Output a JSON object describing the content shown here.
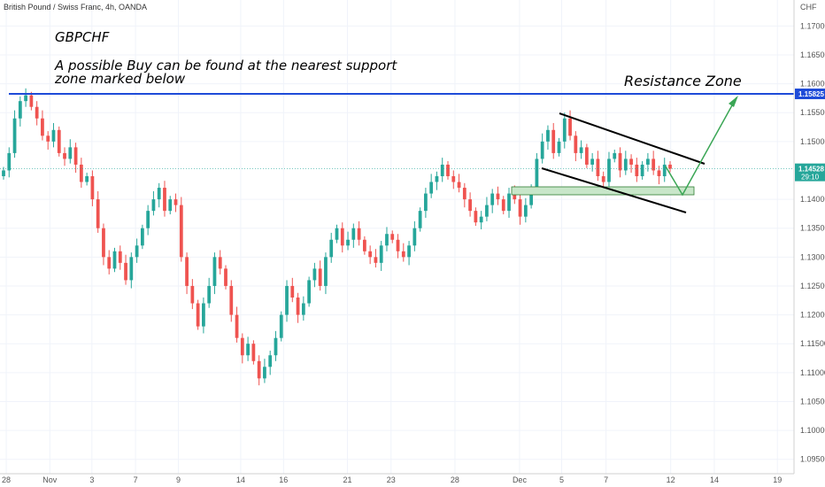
{
  "chart_data": {
    "type": "candlestick",
    "title": "British Pound / Swiss Franc, 4h, OANDA",
    "currency": "CHF",
    "symbol": "GBPCHF",
    "note_line1": "A possible Buy can be found at the nearest support",
    "note_line2": "zone marked below",
    "resistance_label": "Resistance Zone",
    "ylim": [
      1.0925,
      1.1745
    ],
    "y_ticks": [
      "1.17000",
      "1.16500",
      "1.16000",
      "1.15500",
      "1.15000",
      "1.14000",
      "1.13500",
      "1.13000",
      "1.12500",
      "1.12000",
      "1.11500",
      "1.11000",
      "1.10500",
      "1.10000",
      "1.09500"
    ],
    "x_ticks": [
      {
        "label": "28",
        "pos": 0.008
      },
      {
        "label": "Nov",
        "pos": 0.064
      },
      {
        "label": "3",
        "pos": 0.118
      },
      {
        "label": "7",
        "pos": 0.174
      },
      {
        "label": "9",
        "pos": 0.229
      },
      {
        "label": "14",
        "pos": 0.309
      },
      {
        "label": "16",
        "pos": 0.364
      },
      {
        "label": "21",
        "pos": 0.446
      },
      {
        "label": "23",
        "pos": 0.502
      },
      {
        "label": "28",
        "pos": 0.584
      },
      {
        "label": "Dec",
        "pos": 0.667
      },
      {
        "label": "5",
        "pos": 0.721
      },
      {
        "label": "7",
        "pos": 0.778
      },
      {
        "label": "12",
        "pos": 0.861
      },
      {
        "label": "14",
        "pos": 0.917
      },
      {
        "label": "19",
        "pos": 0.998
      }
    ],
    "resistance_level": 1.15825,
    "resistance_tag": "1.15825",
    "current_price": 1.14528,
    "current_tag": "1.14528",
    "countdown": "29:10",
    "up_color": "#26a69a",
    "down_color": "#ef5350",
    "closes": [
      1.145,
      1.148,
      1.154,
      1.157,
      1.158,
      1.156,
      1.154,
      1.151,
      1.15,
      1.152,
      1.148,
      1.147,
      1.149,
      1.146,
      1.143,
      1.144,
      1.14,
      1.135,
      1.13,
      1.128,
      1.131,
      1.129,
      1.126,
      1.13,
      1.132,
      1.135,
      1.138,
      1.14,
      1.142,
      1.138,
      1.14,
      1.139,
      1.13,
      1.125,
      1.122,
      1.118,
      1.122,
      1.125,
      1.13,
      1.128,
      1.125,
      1.12,
      1.116,
      1.113,
      1.115,
      1.112,
      1.109,
      1.111,
      1.113,
      1.116,
      1.12,
      1.125,
      1.123,
      1.12,
      1.122,
      1.126,
      1.128,
      1.125,
      1.13,
      1.133,
      1.135,
      1.132,
      1.133,
      1.135,
      1.133,
      1.131,
      1.13,
      1.129,
      1.132,
      1.134,
      1.133,
      1.131,
      1.13,
      1.132,
      1.135,
      1.138,
      1.141,
      1.143,
      1.144,
      1.146,
      1.144,
      1.143,
      1.142,
      1.14,
      1.138,
      1.136,
      1.137,
      1.139,
      1.141,
      1.14,
      1.138,
      1.141,
      1.14,
      1.137,
      1.139,
      1.142,
      1.147,
      1.15,
      1.152,
      1.148,
      1.15,
      1.154,
      1.151,
      1.148,
      1.149,
      1.146,
      1.147,
      1.144,
      1.143,
      1.147,
      1.148,
      1.145,
      1.147,
      1.146,
      1.144,
      1.146,
      1.147,
      1.145,
      1.144,
      1.146,
      1.1453
    ]
  }
}
